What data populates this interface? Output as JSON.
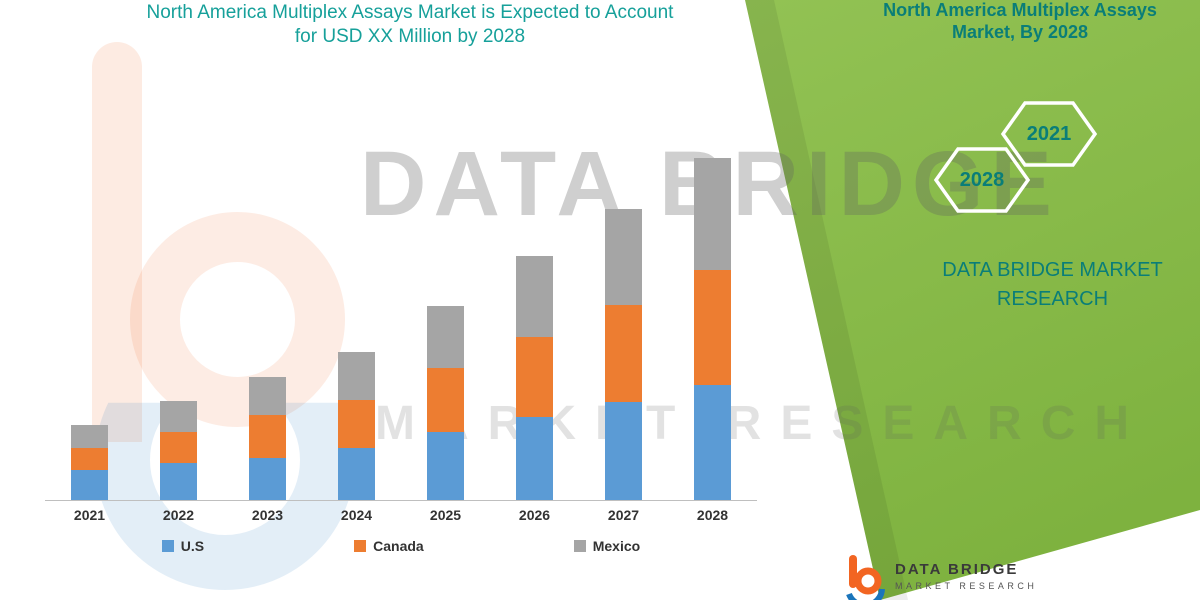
{
  "colors": {
    "teal_heading": "#16A09A",
    "panel_teal": "#0A7E78",
    "panel_green_light": "#9CCA5E",
    "panel_green_dark": "#7EB23F",
    "axis_gray": "#BFBFBF"
  },
  "title": {
    "line1": "North America Multiplex Assays Market is Expected to Account",
    "line2": "for USD XX Million by 2028"
  },
  "side_panel": {
    "title_line1": "North America Multiplex Assays",
    "title_line2": "Market, By 2028",
    "hex_year_front": "2021",
    "hex_year_back": "2028",
    "brand_line1": "DATA BRIDGE MARKET",
    "brand_line2": "RESEARCH"
  },
  "watermark": {
    "line1": "DATA BRIDGE",
    "line2": "MARKET RESEARCH"
  },
  "footer_logo": {
    "name_line1": "DATA BRIDGE",
    "name_line2": "MARKET RESEARCH"
  },
  "chart_data": {
    "type": "bar",
    "stacked": true,
    "title": "North America Multiplex Assays Market is Expected to Account for USD XX Million by 2028",
    "categories": [
      "2021",
      "2022",
      "2023",
      "2024",
      "2025",
      "2026",
      "2027",
      "2028"
    ],
    "series": [
      {
        "name": "U.S",
        "color": "#5B9BD5",
        "values": [
          30,
          37,
          42,
          52,
          68,
          83,
          98,
          115
        ]
      },
      {
        "name": "Canada",
        "color": "#ED7D31",
        "values": [
          22,
          31,
          43,
          48,
          64,
          80,
          97,
          115
        ]
      },
      {
        "name": "Mexico",
        "color": "#A5A5A5",
        "values": [
          23,
          31,
          38,
          48,
          62,
          81,
          96,
          112
        ]
      }
    ],
    "stack_totals": [
      75,
      99,
      123,
      148,
      194,
      244,
      291,
      342
    ],
    "xlabel": "",
    "ylabel": "",
    "units": "relative index (actual values shown as USD XX Million)",
    "ylim": [
      0,
      350
    ],
    "y_axis_visible": false,
    "gridlines": false,
    "legend_position": "bottom"
  }
}
